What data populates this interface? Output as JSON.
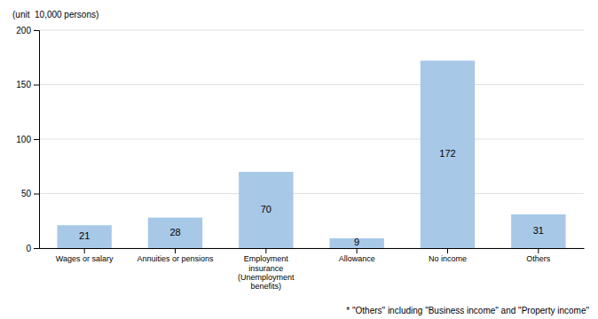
{
  "chart_data": {
    "type": "bar",
    "ylabel": "(unit  10,000 persons)",
    "annotations": [
      "* \"Others\" including \"Business income\" and \"Property income\""
    ],
    "categories": [
      "Wages or salary",
      "Annuities or pensions",
      "Employment\ninsurance\n(Unemployment\nbenefits)",
      "Allowance",
      "No income",
      "Others"
    ],
    "values": [
      21,
      28,
      70,
      9,
      172,
      31
    ],
    "color": "#a8c8e8",
    "ylim": [
      0,
      200
    ],
    "yticks": [
      0,
      50,
      100,
      150,
      200
    ],
    "grid": true,
    "data_labels": true
  }
}
